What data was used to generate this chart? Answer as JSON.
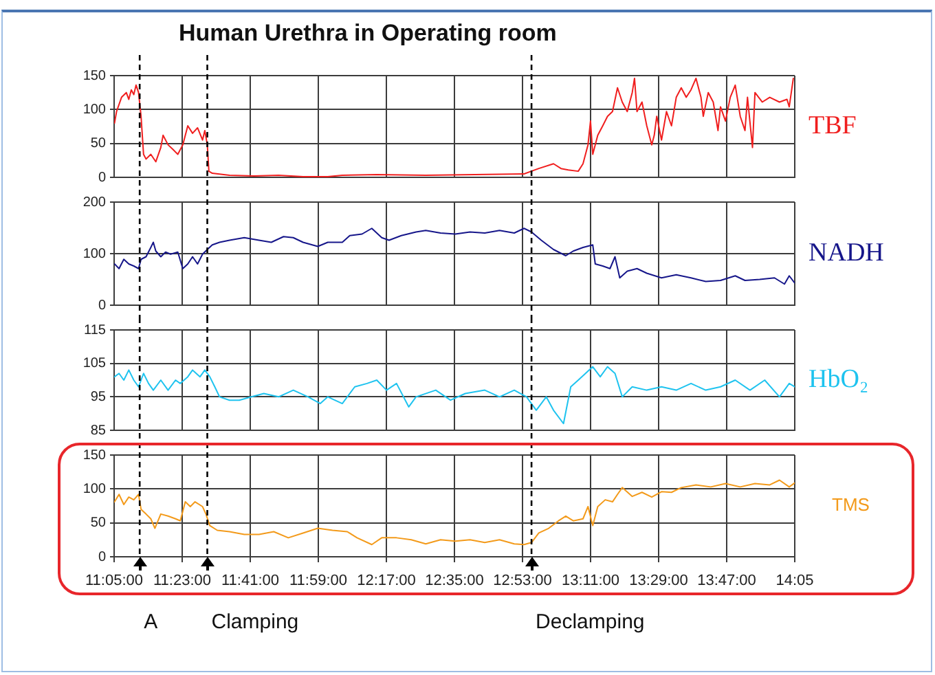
{
  "chart_data": [
    {
      "type": "line",
      "title": "Human Urethra in Operating room",
      "xlim": [
        11.0833,
        14.0833
      ],
      "xticks": [
        {
          "value": 11.0833,
          "label": null
        },
        {
          "value": 11.3833,
          "label": null
        },
        {
          "value": 11.6833,
          "label": null
        },
        {
          "value": 11.9833,
          "label": null
        },
        {
          "value": 12.2833,
          "label": null
        },
        {
          "value": 12.5833,
          "label": null
        },
        {
          "value": 12.8833,
          "label": null
        },
        {
          "value": 13.1833,
          "label": null
        },
        {
          "value": 13.4833,
          "label": null
        },
        {
          "value": 13.7833,
          "label": null
        },
        {
          "value": 14.0833,
          "label": null
        }
      ],
      "ylim": [
        0,
        150
      ],
      "yticks": [
        0,
        50,
        100,
        150
      ],
      "grid": true,
      "tick_labels": "y",
      "ref_lines": [
        {
          "axis": "x",
          "value": 11.196,
          "line_style": "dashed",
          "color": "#000000"
        },
        {
          "axis": "x",
          "value": 11.494,
          "line_style": "dashed",
          "color": "#000000"
        },
        {
          "axis": "x",
          "value": 12.923,
          "line_style": "dashed",
          "color": "#000000"
        }
      ],
      "series": [
        {
          "name": "TBF",
          "color": "#f01e1e",
          "x": [
            11.085,
            11.094,
            11.116,
            11.137,
            11.148,
            11.159,
            11.17,
            11.18,
            11.191,
            11.202,
            11.213,
            11.224,
            11.245,
            11.267,
            11.289,
            11.299,
            11.321,
            11.343,
            11.364,
            11.386,
            11.408,
            11.429,
            11.451,
            11.473,
            11.483,
            11.494,
            11.501,
            11.516,
            11.592,
            11.7,
            11.808,
            11.916,
            12.025,
            12.089,
            12.241,
            12.457,
            12.674,
            12.89,
            12.955,
            13.02,
            13.053,
            13.085,
            13.129,
            13.15,
            13.172,
            13.183,
            13.193,
            13.215,
            13.237,
            13.258,
            13.28,
            13.302,
            13.323,
            13.345,
            13.367,
            13.377,
            13.388,
            13.41,
            13.431,
            13.453,
            13.464,
            13.475,
            13.496,
            13.518,
            13.54,
            13.561,
            13.583,
            13.605,
            13.626,
            13.648,
            13.67,
            13.68,
            13.702,
            13.724,
            13.745,
            13.756,
            13.778,
            13.799,
            13.821,
            13.843,
            13.864,
            13.875,
            13.897,
            13.908,
            13.94,
            13.973,
            14.016,
            14.049,
            14.059,
            14.077
          ],
          "values": [
            80,
            97,
            118,
            125,
            115,
            129,
            122,
            136,
            125,
            90,
            34,
            27,
            34,
            23,
            44,
            62,
            48,
            41,
            34,
            48,
            76,
            65,
            73,
            55,
            69,
            48,
            9,
            6,
            3,
            2,
            3,
            1,
            1,
            3,
            4,
            3,
            4,
            5,
            13,
            20,
            13,
            11,
            9,
            20,
            48,
            83,
            34,
            62,
            76,
            90,
            97,
            132,
            111,
            97,
            125,
            146,
            97,
            111,
            76,
            48,
            62,
            90,
            55,
            97,
            76,
            118,
            132,
            118,
            129,
            146,
            118,
            90,
            125,
            111,
            69,
            104,
            83,
            118,
            136,
            90,
            69,
            118,
            44,
            125,
            111,
            118,
            111,
            115,
            104,
            146
          ]
        }
      ]
    },
    {
      "type": "line",
      "xlim": [
        11.0833,
        14.0833
      ],
      "xticks": [
        {
          "value": 11.0833,
          "label": null
        },
        {
          "value": 11.3833,
          "label": null
        },
        {
          "value": 11.6833,
          "label": null
        },
        {
          "value": 11.9833,
          "label": null
        },
        {
          "value": 12.2833,
          "label": null
        },
        {
          "value": 12.5833,
          "label": null
        },
        {
          "value": 12.8833,
          "label": null
        },
        {
          "value": 13.1833,
          "label": null
        },
        {
          "value": 13.4833,
          "label": null
        },
        {
          "value": 13.7833,
          "label": null
        },
        {
          "value": 14.0833,
          "label": null
        }
      ],
      "ylim": [
        0,
        200
      ],
      "yticks": [
        0,
        100,
        200
      ],
      "grid": true,
      "tick_labels": "y",
      "ref_lines": [
        {
          "axis": "x",
          "value": 11.196,
          "line_style": "dashed",
          "color": "#000000"
        },
        {
          "axis": "x",
          "value": 11.494,
          "line_style": "dashed",
          "color": "#000000"
        },
        {
          "axis": "x",
          "value": 12.923,
          "line_style": "dashed",
          "color": "#000000"
        }
      ],
      "series": [
        {
          "name": "NADH",
          "color": "#16168a",
          "x": [
            11.085,
            11.105,
            11.126,
            11.148,
            11.17,
            11.191,
            11.202,
            11.224,
            11.245,
            11.256,
            11.267,
            11.289,
            11.31,
            11.332,
            11.364,
            11.386,
            11.408,
            11.429,
            11.451,
            11.473,
            11.494,
            11.516,
            11.548,
            11.592,
            11.657,
            11.722,
            11.776,
            11.83,
            11.873,
            11.916,
            11.981,
            12.025,
            12.089,
            12.122,
            12.176,
            12.219,
            12.263,
            12.295,
            12.349,
            12.414,
            12.457,
            12.522,
            12.587,
            12.652,
            12.717,
            12.782,
            12.847,
            12.89,
            12.923,
            12.966,
            13.02,
            13.074,
            13.107,
            13.15,
            13.193,
            13.204,
            13.237,
            13.269,
            13.291,
            13.312,
            13.345,
            13.388,
            13.431,
            13.496,
            13.561,
            13.626,
            13.691,
            13.756,
            13.821,
            13.864,
            13.929,
            13.994,
            14.038,
            14.059,
            14.083
          ],
          "values": [
            80,
            71,
            89,
            80,
            76,
            71,
            89,
            94,
            112,
            122,
            105,
            94,
            103,
            99,
            103,
            71,
            80,
            94,
            80,
            99,
            108,
            117,
            122,
            126,
            131,
            126,
            122,
            133,
            131,
            122,
            114,
            122,
            122,
            135,
            138,
            149,
            131,
            126,
            135,
            142,
            145,
            140,
            138,
            142,
            140,
            145,
            140,
            149,
            142,
            126,
            108,
            96,
            105,
            112,
            117,
            80,
            76,
            71,
            94,
            53,
            66,
            71,
            62,
            53,
            59,
            53,
            46,
            48,
            57,
            48,
            50,
            53,
            41,
            57,
            43
          ]
        }
      ]
    },
    {
      "type": "line",
      "xlim": [
        11.0833,
        14.0833
      ],
      "xticks": [
        {
          "value": 11.0833,
          "label": null
        },
        {
          "value": 11.3833,
          "label": null
        },
        {
          "value": 11.6833,
          "label": null
        },
        {
          "value": 11.9833,
          "label": null
        },
        {
          "value": 12.2833,
          "label": null
        },
        {
          "value": 12.5833,
          "label": null
        },
        {
          "value": 12.8833,
          "label": null
        },
        {
          "value": 13.1833,
          "label": null
        },
        {
          "value": 13.4833,
          "label": null
        },
        {
          "value": 13.7833,
          "label": null
        },
        {
          "value": 14.0833,
          "label": null
        }
      ],
      "ylim": [
        85,
        115
      ],
      "yticks": [
        85,
        95,
        105,
        115
      ],
      "grid": true,
      "tick_labels": "y",
      "ref_lines": [
        {
          "axis": "x",
          "value": 11.196,
          "line_style": "dashed",
          "color": "#000000"
        },
        {
          "axis": "x",
          "value": 11.494,
          "line_style": "dashed",
          "color": "#000000"
        },
        {
          "axis": "x",
          "value": 12.923,
          "line_style": "dashed",
          "color": "#000000"
        }
      ],
      "series": [
        {
          "name": "HbO₂",
          "color": "#1ec3ef",
          "x": [
            11.085,
            11.105,
            11.126,
            11.148,
            11.17,
            11.191,
            11.213,
            11.235,
            11.256,
            11.289,
            11.321,
            11.354,
            11.375,
            11.408,
            11.429,
            11.462,
            11.483,
            11.505,
            11.527,
            11.548,
            11.592,
            11.635,
            11.689,
            11.743,
            11.808,
            11.873,
            11.938,
            11.992,
            12.025,
            12.089,
            12.144,
            12.198,
            12.241,
            12.284,
            12.328,
            12.382,
            12.414,
            12.501,
            12.566,
            12.631,
            12.717,
            12.782,
            12.847,
            12.901,
            12.944,
            12.988,
            13.02,
            13.064,
            13.096,
            13.129,
            13.161,
            13.193,
            13.226,
            13.258,
            13.291,
            13.323,
            13.367,
            13.431,
            13.496,
            13.561,
            13.626,
            13.691,
            13.756,
            13.821,
            13.886,
            13.951,
            14.016,
            14.059,
            14.083
          ],
          "values": [
            101,
            102,
            100,
            103,
            100,
            98,
            102,
            99,
            97,
            100,
            97,
            100,
            99,
            101,
            103,
            101,
            103,
            101,
            98,
            95,
            94,
            94,
            95,
            96,
            95,
            97,
            95,
            93,
            95,
            93,
            98,
            99,
            100,
            97,
            99,
            92,
            95,
            97,
            94,
            96,
            97,
            95,
            97,
            95,
            91,
            95,
            91,
            87,
            98,
            100,
            102,
            104,
            101,
            104,
            102,
            95,
            98,
            97,
            98,
            97,
            99,
            97,
            98,
            100,
            97,
            100,
            95,
            99,
            98
          ]
        }
      ]
    },
    {
      "type": "line",
      "xlim": [
        11.0833,
        14.0833
      ],
      "xticks": [
        {
          "value": 11.0833,
          "label": "11:05:00"
        },
        {
          "value": 11.3833,
          "label": "11:23:00"
        },
        {
          "value": 11.6833,
          "label": "11:41:00"
        },
        {
          "value": 11.9833,
          "label": "11:59:00"
        },
        {
          "value": 12.2833,
          "label": "12:17:00"
        },
        {
          "value": 12.5833,
          "label": "12:35:00"
        },
        {
          "value": 12.8833,
          "label": "12:53:00"
        },
        {
          "value": 13.1833,
          "label": "13:11:00"
        },
        {
          "value": 13.4833,
          "label": "13:29:00"
        },
        {
          "value": 13.7833,
          "label": "13:47:00"
        },
        {
          "value": 14.0833,
          "label": "14:05"
        }
      ],
      "ylim": [
        0,
        150
      ],
      "yticks": [
        0,
        50,
        100,
        150
      ],
      "grid": true,
      "ref_lines": [
        {
          "axis": "x",
          "value": 11.196,
          "label": "A",
          "line_style": "dashed",
          "color": "#000000"
        },
        {
          "axis": "x",
          "value": 11.494,
          "label": "Clamping",
          "line_style": "dashed",
          "color": "#000000"
        },
        {
          "axis": "x",
          "value": 12.923,
          "label": "Declamping",
          "line_style": "dashed",
          "color": "#000000"
        }
      ],
      "series": [
        {
          "name": "TMS",
          "color": "#f39a1a",
          "x": [
            11.085,
            11.105,
            11.126,
            11.148,
            11.17,
            11.191,
            11.202,
            11.224,
            11.245,
            11.263,
            11.289,
            11.321,
            11.354,
            11.375,
            11.397,
            11.419,
            11.44,
            11.473,
            11.488,
            11.505,
            11.538,
            11.592,
            11.657,
            11.722,
            11.787,
            11.851,
            11.916,
            11.981,
            12.046,
            12.111,
            12.154,
            12.219,
            12.263,
            12.328,
            12.393,
            12.457,
            12.522,
            12.587,
            12.652,
            12.717,
            12.782,
            12.847,
            12.89,
            12.923,
            12.955,
            12.999,
            13.042,
            13.074,
            13.107,
            13.15,
            13.172,
            13.193,
            13.215,
            13.248,
            13.28,
            13.302,
            13.323,
            13.367,
            13.41,
            13.453,
            13.496,
            13.54,
            13.583,
            13.648,
            13.713,
            13.778,
            13.843,
            13.908,
            13.973,
            14.016,
            14.059,
            14.083
          ],
          "values": [
            81,
            92,
            77,
            88,
            84,
            92,
            70,
            63,
            56,
            42,
            63,
            60,
            56,
            53,
            81,
            74,
            81,
            74,
            63,
            46,
            39,
            37,
            33,
            33,
            37,
            28,
            35,
            42,
            39,
            37,
            28,
            18,
            28,
            28,
            25,
            19,
            25,
            23,
            25,
            21,
            25,
            19,
            18,
            21,
            35,
            42,
            53,
            60,
            53,
            56,
            74,
            46,
            74,
            84,
            81,
            92,
            102,
            89,
            95,
            88,
            96,
            95,
            102,
            106,
            103,
            108,
            103,
            108,
            106,
            113,
            103,
            109
          ]
        }
      ]
    }
  ]
}
